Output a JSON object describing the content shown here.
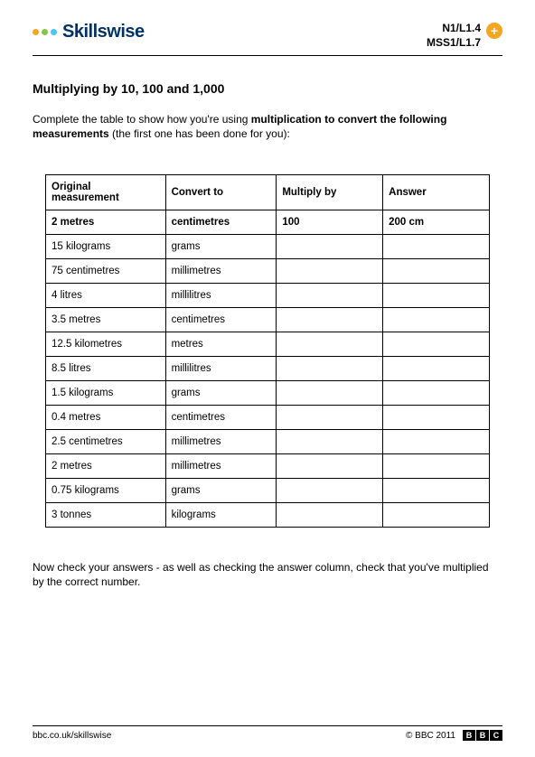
{
  "header": {
    "logo_text": "Skillswise",
    "logo_dots": [
      "#f5a623",
      "#8bc34a",
      "#4fc3f7"
    ],
    "code1": "N1/L1.4",
    "code2": "MSS1/L1.7",
    "plus": "+"
  },
  "title": "Multiplying by 10, 100 and 1,000",
  "instruction_prefix": "Complete the table to show how you're using ",
  "instruction_bold": "multiplication to convert the following measurements",
  "instruction_suffix": " (the first one has been done for you):",
  "table": {
    "columns": [
      "Original measurement",
      "Convert to",
      "Multiply by",
      "Answer"
    ],
    "column_widths": [
      "27%",
      "25%",
      "24%",
      "24%"
    ],
    "example": [
      "2 metres",
      "centimetres",
      "100",
      "200 cm"
    ],
    "rows": [
      [
        "15 kilograms",
        "grams",
        "",
        ""
      ],
      [
        "75 centimetres",
        "millimetres",
        "",
        ""
      ],
      [
        "4 litres",
        "millilitres",
        "",
        ""
      ],
      [
        "3.5 metres",
        "centimetres",
        "",
        ""
      ],
      [
        "12.5 kilometres",
        "metres",
        "",
        ""
      ],
      [
        "8.5 litres",
        "millilitres",
        "",
        ""
      ],
      [
        "1.5 kilograms",
        "grams",
        "",
        ""
      ],
      [
        "0.4 metres",
        "centimetres",
        "",
        ""
      ],
      [
        "2.5 centimetres",
        "millimetres",
        "",
        ""
      ],
      [
        "2 metres",
        "millimetres",
        "",
        ""
      ],
      [
        "0.75 kilograms",
        "grams",
        "",
        ""
      ],
      [
        "3 tonnes",
        "kilograms",
        "",
        ""
      ]
    ]
  },
  "footer_note": "Now check your answers - as well as checking the answer column, check that you've multiplied by the correct number.",
  "footer": {
    "url": "bbc.co.uk/skillswise",
    "copyright": "© BBC 2011",
    "bbc": [
      "B",
      "B",
      "C"
    ]
  }
}
